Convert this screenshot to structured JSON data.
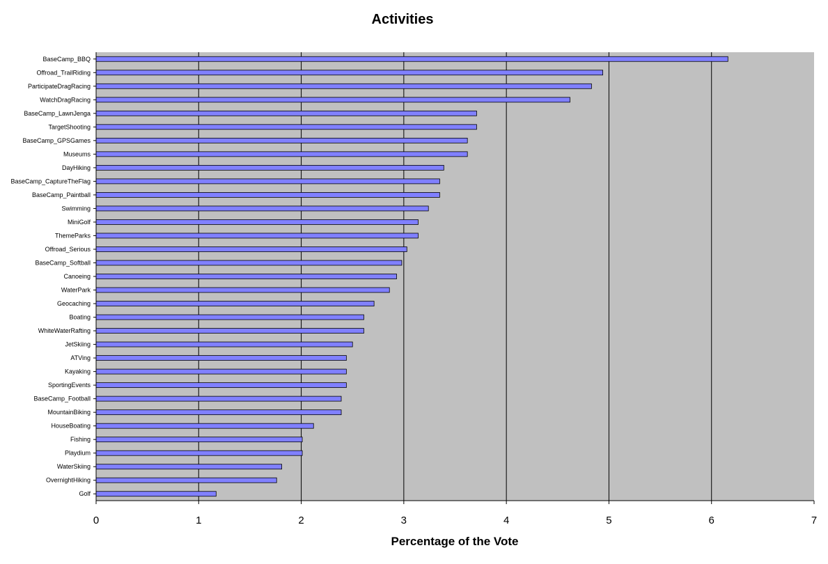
{
  "chart_data": {
    "type": "bar",
    "orientation": "horizontal",
    "title": "Activities",
    "xlabel": "Percentage of the Vote",
    "ylabel": "",
    "xlim": [
      0,
      7
    ],
    "xticks": [
      "0",
      "1",
      "2",
      "3",
      "4",
      "5",
      "6",
      "7"
    ],
    "grid": "vertical major gridlines",
    "plot_background": "#c0c0c0",
    "bar_color": "#8080ff",
    "categories": [
      "BaseCamp_BBQ",
      "Offroad_TrailRiding",
      "ParticipateDragRacing",
      "WatchDragRacing",
      "BaseCamp_LawnJenga",
      "TargetShooting",
      "BaseCamp_GPSGames",
      "Museums",
      "DayHiking",
      "BaseCamp_CaptureTheFlag",
      "BaseCamp_Paintball",
      "Swimming",
      "MiniGolf",
      "ThemeParks",
      "Offroad_Serious",
      "BaseCamp_Softball",
      "Canoeing",
      "WaterPark",
      "Geocaching",
      "Boating",
      "WhiteWaterRafting",
      "JetSkiing",
      "ATVing",
      "Kayaking",
      "SportingEvents",
      "BaseCamp_Football",
      "MountainBiking",
      "HouseBoating",
      "Fishing",
      "Playdium",
      "WaterSkiing",
      "OvernightHiking",
      "Golf"
    ],
    "values": [
      6.16,
      4.94,
      4.83,
      4.62,
      3.71,
      3.71,
      3.62,
      3.62,
      3.39,
      3.35,
      3.35,
      3.24,
      3.14,
      3.14,
      3.03,
      2.98,
      2.93,
      2.86,
      2.71,
      2.61,
      2.61,
      2.5,
      2.44,
      2.44,
      2.44,
      2.39,
      2.39,
      2.12,
      2.01,
      2.01,
      1.81,
      1.76,
      1.17
    ]
  }
}
